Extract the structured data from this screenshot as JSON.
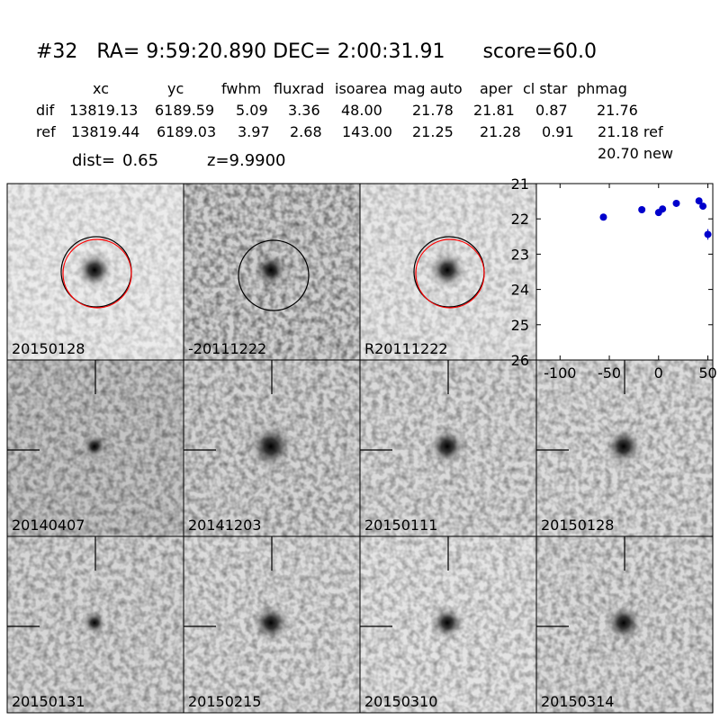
{
  "header": {
    "title": "#32   RA= 9:59:20.890 DEC= 2:00:31.91      score=60.0"
  },
  "table": {
    "columns": [
      "xc",
      "yc",
      "fwhm",
      "fluxrad",
      "isoarea",
      "mag auto",
      "aper",
      "cl star",
      "phmag"
    ],
    "rows": [
      [
        "dif",
        "13819.13",
        "6189.59",
        "5.09",
        "3.36",
        "48.00",
        "21.78",
        "21.81",
        "0.87",
        "21.76"
      ],
      [
        "ref",
        "13819.44",
        "6189.03",
        "3.97",
        "2.68",
        "143.00",
        "21.25",
        "21.28",
        "0.91",
        "21.18 ref"
      ]
    ],
    "note": "20.70 new"
  },
  "stats": {
    "dist_label": "dist=",
    "dist": "0.65",
    "z_label": "z=9.9900"
  },
  "panels": [
    {
      "label": "20150128"
    },
    {
      "label": "-20111222"
    },
    {
      "label": "R20111222"
    },
    {
      "label": "20140407"
    },
    {
      "label": "20141203"
    },
    {
      "label": "20150111"
    },
    {
      "label": "20150128",
      "color": "#ff0000"
    },
    {
      "label": "20150131"
    },
    {
      "label": "20150215"
    },
    {
      "label": "20150310"
    },
    {
      "label": "20150314"
    }
  ],
  "chart_data": {
    "type": "scatter",
    "color": "#0000cc",
    "x": [
      -56,
      -17,
      0,
      4,
      18,
      41,
      45,
      50
    ],
    "values": [
      21.95,
      21.74,
      21.82,
      21.72,
      21.56,
      21.49,
      21.64,
      22.44
    ],
    "errors": [
      0.04,
      0.04,
      0.05,
      0.04,
      0.03,
      0.03,
      0.04,
      0.15
    ],
    "xlim": [
      -124,
      55
    ],
    "ylim": [
      26,
      21
    ],
    "xticks": [
      -100,
      -50,
      0,
      50
    ],
    "yticks": [
      21,
      22,
      23,
      24,
      25,
      26
    ]
  }
}
